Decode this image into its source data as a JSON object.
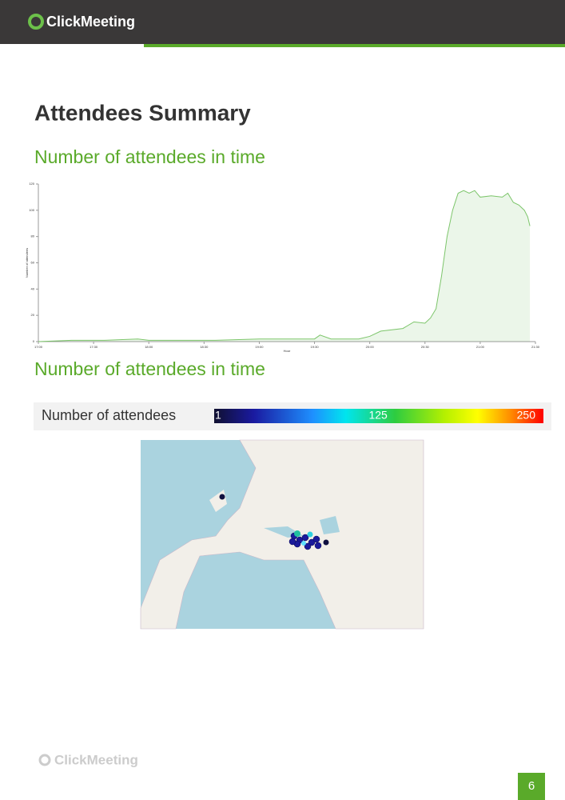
{
  "header": {
    "logo": "ClickMeeting"
  },
  "title": "Attendees Summary",
  "sections": [
    {
      "heading": "Number of attendees in time"
    },
    {
      "heading": "Number of attendees in time"
    }
  ],
  "chart_data": {
    "type": "line",
    "x_label": "Hour",
    "y_label": "Number of attendees",
    "x": [
      17.0,
      17.3,
      17.6,
      17.9,
      18.0,
      18.3,
      18.6,
      19.0,
      19.3,
      19.5,
      19.55,
      19.65,
      19.9,
      20.0,
      20.1,
      20.3,
      20.4,
      20.5,
      20.55,
      20.6,
      20.65,
      20.7,
      20.75,
      20.8,
      20.85,
      20.9,
      20.95,
      21.0,
      21.1,
      21.2,
      21.25,
      21.3,
      21.35,
      21.4,
      21.43,
      21.45
    ],
    "series": [
      {
        "name": "Number of attendees",
        "color": "#7cc56a",
        "values": [
          0,
          1,
          1,
          2,
          1,
          1,
          1,
          2,
          2,
          2,
          5,
          2,
          2,
          4,
          8,
          10,
          15,
          14,
          18,
          25,
          50,
          80,
          100,
          113,
          115,
          113,
          115,
          110,
          111,
          110,
          113,
          106,
          104,
          100,
          95,
          88
        ]
      }
    ],
    "xlim": [
      17,
      21.5
    ],
    "xticks": [
      {
        "value": 17,
        "label": "17:00"
      },
      {
        "value": 17.5,
        "label": "17:30"
      },
      {
        "value": 18,
        "label": "18:00"
      },
      {
        "value": 18.5,
        "label": "18:30"
      },
      {
        "value": 19,
        "label": "19:00"
      },
      {
        "value": 19.5,
        "label": "19:30"
      },
      {
        "value": 20,
        "label": "20:00"
      },
      {
        "value": 20.5,
        "label": "20:30"
      },
      {
        "value": 21,
        "label": "21:00"
      },
      {
        "value": 21.5,
        "label": "21:30"
      }
    ],
    "ylim": [
      0,
      120
    ],
    "yticks": [
      0,
      20,
      40,
      60,
      80,
      100,
      120
    ]
  },
  "legend": {
    "label": "Number of attendees",
    "ticks": [
      1,
      125,
      250
    ]
  },
  "footer": {
    "logo": "ClickMeeting",
    "page": 6
  }
}
